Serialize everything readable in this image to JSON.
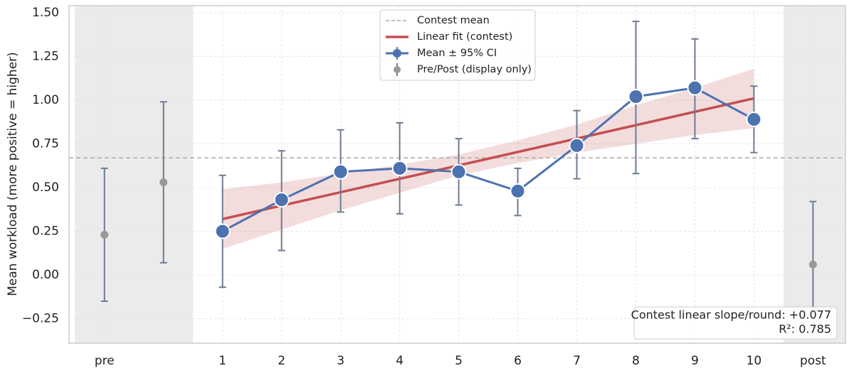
{
  "chart_data": {
    "type": "line",
    "ylabel": "Mean workload (more positive = higher)",
    "xlim": [
      -1.6,
      11.55
    ],
    "ylim": [
      -0.39,
      1.54
    ],
    "xticks": [
      {
        "value": -1,
        "label": "pre"
      },
      1,
      2,
      3,
      4,
      5,
      6,
      7,
      8,
      9,
      10,
      {
        "value": 11,
        "label": "post"
      }
    ],
    "yticks": [
      {
        "value": 1.5,
        "label": "1.50"
      },
      1.25,
      {
        "value": 1.0,
        "label": "1.00"
      },
      0.75,
      {
        "value": 0.5,
        "label": "0.50"
      },
      0.25,
      {
        "value": 0.0,
        "label": "0.00"
      },
      {
        "value": -0.25,
        "label": "−0.25"
      }
    ],
    "grid": true,
    "legend": "upper center",
    "errorbar_color": "#6e7b91",
    "shaded_regions": [
      [
        -1.5,
        0.5
      ],
      [
        10.5,
        11.55
      ]
    ],
    "mean_line": {
      "name": "Contest mean",
      "value": 0.67,
      "color": "#aaaaaa"
    },
    "fit": {
      "name": "Linear fit (contest)",
      "color": "#c44e52",
      "x": [
        1,
        10
      ],
      "values": [
        0.32,
        1.01
      ],
      "band_x": [
        1,
        2,
        3,
        4,
        5,
        6,
        7,
        8,
        9,
        10
      ],
      "band_lower": [
        0.15,
        0.26,
        0.37,
        0.47,
        0.57,
        0.64,
        0.7,
        0.75,
        0.8,
        0.84
      ],
      "band_upper": [
        0.49,
        0.53,
        0.58,
        0.63,
        0.69,
        0.77,
        0.86,
        0.97,
        1.07,
        1.18
      ]
    },
    "series": [
      {
        "name": "Mean ± 95% CI",
        "color": "#4c72b0",
        "x": [
          1,
          2,
          3,
          4,
          5,
          6,
          7,
          8,
          9,
          10
        ],
        "values": [
          0.25,
          0.43,
          0.59,
          0.61,
          0.59,
          0.48,
          0.74,
          1.02,
          1.07,
          0.89
        ],
        "ci_low": [
          -0.07,
          0.14,
          0.36,
          0.35,
          0.4,
          0.34,
          0.55,
          0.58,
          0.78,
          0.7
        ],
        "ci_high": [
          0.57,
          0.71,
          0.83,
          0.87,
          0.78,
          0.61,
          0.94,
          1.45,
          1.35,
          1.08
        ]
      },
      {
        "name": "Pre/Post (display only)",
        "color": "#999999",
        "x": [
          -1,
          0,
          11
        ],
        "values": [
          0.23,
          0.53,
          0.06
        ],
        "ci_low": [
          -0.15,
          0.07,
          -0.3
        ],
        "ci_high": [
          0.61,
          0.99,
          0.42
        ]
      }
    ],
    "annotations": [
      "Contest linear slope/round: +0.077",
      "R²: 0.785"
    ]
  }
}
